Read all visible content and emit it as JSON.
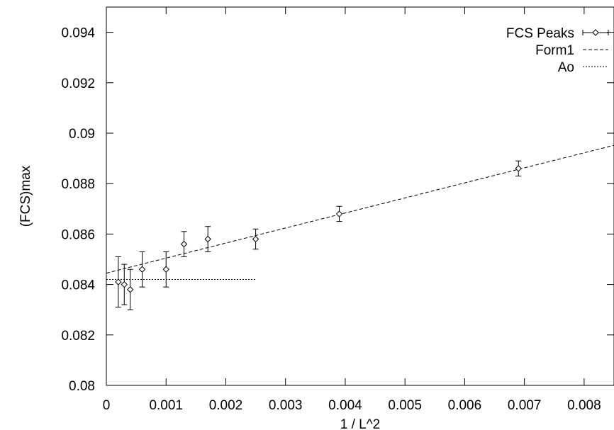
{
  "chart_data": {
    "type": "scatter",
    "title": "",
    "xlabel": "1 / L^2",
    "ylabel": "(FCS)max",
    "xlim": [
      0,
      0.0085
    ],
    "ylim": [
      0.08,
      0.095
    ],
    "x_ticks": [
      0,
      0.001,
      0.002,
      0.003,
      0.004,
      0.005,
      0.006,
      0.007,
      0.008
    ],
    "x_tick_labels": [
      "0",
      "0.001",
      "0.002",
      "0.003",
      "0.004",
      "0.005",
      "0.006",
      "0.007",
      "0.008"
    ],
    "y_ticks": [
      0.08,
      0.082,
      0.084,
      0.086,
      0.088,
      0.09,
      0.092,
      0.094
    ],
    "y_tick_labels": [
      "0.08",
      "0.082",
      "0.084",
      "0.086",
      "0.088",
      "0.09",
      "0.092",
      "0.094"
    ],
    "grid": false,
    "legend_position": "top-right",
    "series": [
      {
        "name": "FCS Peaks",
        "style": "points-with-errorbars",
        "marker": "diamond",
        "color": "#000000",
        "x": [
          0.0002,
          0.0003,
          0.0004,
          0.0006,
          0.001,
          0.0013,
          0.0017,
          0.0025,
          0.0039,
          0.0069
        ],
        "y": [
          0.0841,
          0.084,
          0.0838,
          0.0846,
          0.0846,
          0.0856,
          0.0858,
          0.0858,
          0.0868,
          0.0886
        ],
        "yerr": [
          0.001,
          0.0008,
          0.0008,
          0.0007,
          0.0007,
          0.0005,
          0.0005,
          0.0004,
          0.0003,
          0.0003
        ]
      },
      {
        "name": "Form1",
        "style": "dashed-line",
        "color": "#000000",
        "x": [
          0,
          0.0085
        ],
        "y": [
          0.08445,
          0.08952
        ]
      },
      {
        "name": "Ao",
        "style": "dotted-line",
        "color": "#000000",
        "x": [
          0,
          0.0025
        ],
        "y": [
          0.0842,
          0.0842
        ]
      }
    ]
  }
}
